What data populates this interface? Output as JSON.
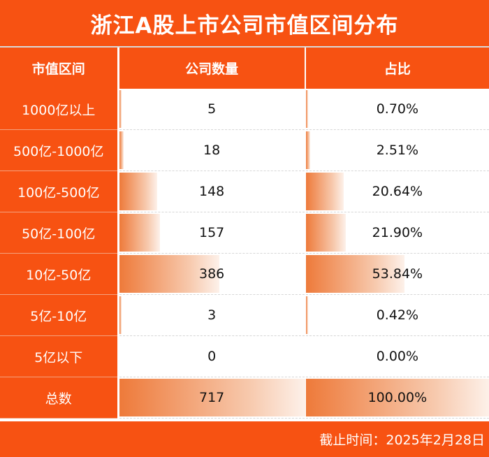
{
  "title": "浙江A股上市公司市值区间分布",
  "columns": [
    "市值区间",
    "公司数量",
    "占比"
  ],
  "rows": [
    {
      "range": "1000亿以上",
      "count": "5",
      "ratio": "0.70%",
      "count_value": 5,
      "ratio_value": 0.7
    },
    {
      "range": "500亿-1000亿",
      "count": "18",
      "ratio": "2.51%",
      "count_value": 18,
      "ratio_value": 2.51
    },
    {
      "range": "100亿-500亿",
      "count": "148",
      "ratio": "20.64%",
      "count_value": 148,
      "ratio_value": 20.64
    },
    {
      "range": "50亿-100亿",
      "count": "157",
      "ratio": "21.90%",
      "count_value": 157,
      "ratio_value": 21.9
    },
    {
      "range": "10亿-50亿",
      "count": "386",
      "ratio": "53.84%",
      "count_value": 386,
      "ratio_value": 53.84
    },
    {
      "range": "5亿-10亿",
      "count": "3",
      "ratio": "0.42%",
      "count_value": 3,
      "ratio_value": 0.42
    },
    {
      "range": "5亿以下",
      "count": "0",
      "ratio": "0.00%",
      "count_value": 0,
      "ratio_value": 0.0
    },
    {
      "range": "总数",
      "count": "717",
      "ratio": "100.00%",
      "count_value": 717,
      "ratio_value": 100.0
    }
  ],
  "footer": "截止时间：2025年2月28日",
  "colors": {
    "accent": "#f75212",
    "bar": "#ee7a3a"
  }
}
